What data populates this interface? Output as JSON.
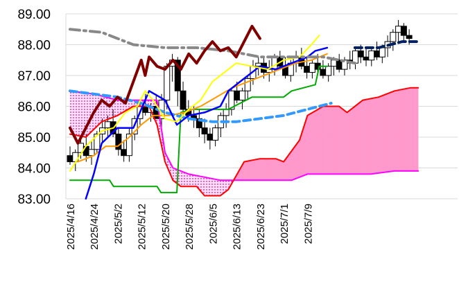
{
  "chart_data": {
    "type": "line",
    "title": "",
    "xlabel": "",
    "ylabel": "",
    "ylim": [
      83.0,
      89.0
    ],
    "grid": true,
    "legend": "none",
    "y_ticks": [
      "83.00",
      "84.00",
      "85.00",
      "86.00",
      "87.00",
      "88.00",
      "89.00"
    ],
    "y_tick_values": [
      83,
      84,
      85,
      86,
      87,
      88,
      89
    ],
    "x_ticks": [
      "2025/4/16",
      "2025/4/24",
      "2025/5/2",
      "2025/5/12",
      "2025/5/20",
      "2025/5/28",
      "2025/6/5",
      "2025/6/13",
      "2025/6/23",
      "2025/7/1",
      "2025/7/9"
    ],
    "x_tick_index": [
      0,
      6,
      12,
      18,
      24,
      30,
      36,
      42,
      48,
      54,
      60
    ],
    "n_slots": 73,
    "candles": [
      [
        84.4,
        84.7,
        84.1,
        84.2
      ],
      [
        84.2,
        84.6,
        83.9,
        84.5
      ],
      [
        84.5,
        85.0,
        84.3,
        84.8
      ],
      [
        84.7,
        85.1,
        84.2,
        84.4
      ],
      [
        84.4,
        84.9,
        84.1,
        84.6
      ],
      [
        84.6,
        85.2,
        84.5,
        85.1
      ],
      [
        85.1,
        85.6,
        84.8,
        85.3
      ],
      [
        85.3,
        85.7,
        85.0,
        85.5
      ],
      [
        85.5,
        85.9,
        85.0,
        85.1
      ],
      [
        85.1,
        85.3,
        84.4,
        84.6
      ],
      [
        84.6,
        84.9,
        84.2,
        84.4
      ],
      [
        84.4,
        85.3,
        84.2,
        85.1
      ],
      [
        85.1,
        85.7,
        84.9,
        85.6
      ],
      [
        85.6,
        86.2,
        85.4,
        86.0
      ],
      [
        86.0,
        86.4,
        85.7,
        85.8
      ],
      [
        85.8,
        86.1,
        85.5,
        86.0
      ],
      [
        86.0,
        86.4,
        85.6,
        85.6
      ],
      [
        85.6,
        86.4,
        85.3,
        86.2
      ],
      [
        86.2,
        87.4,
        85.9,
        87.3
      ],
      [
        87.3,
        87.7,
        86.8,
        87.5
      ],
      [
        87.5,
        87.6,
        86.0,
        86.5
      ],
      [
        86.5,
        86.8,
        85.7,
        85.9
      ],
      [
        85.9,
        86.2,
        85.5,
        85.7
      ],
      [
        85.7,
        86.0,
        85.3,
        85.6
      ],
      [
        85.6,
        85.9,
        85.0,
        85.3
      ],
      [
        85.3,
        85.6,
        84.8,
        85.1
      ],
      [
        85.1,
        85.3,
        84.6,
        84.9
      ],
      [
        84.9,
        85.4,
        84.7,
        85.3
      ],
      [
        85.3,
        85.8,
        85.0,
        85.7
      ],
      [
        85.7,
        86.1,
        85.3,
        85.9
      ],
      [
        85.9,
        86.6,
        85.7,
        86.5
      ],
      [
        86.5,
        86.8,
        86.1,
        86.2
      ],
      [
        86.2,
        86.6,
        85.9,
        86.5
      ],
      [
        86.5,
        87.0,
        86.2,
        86.9
      ],
      [
        86.9,
        87.5,
        86.7,
        87.3
      ],
      [
        87.3,
        87.6,
        87.0,
        87.4
      ],
      [
        87.4,
        87.6,
        86.9,
        87.1
      ],
      [
        87.1,
        87.5,
        86.8,
        87.2
      ],
      [
        87.2,
        87.7,
        87.0,
        87.6
      ],
      [
        87.6,
        87.8,
        87.2,
        87.3
      ],
      [
        87.3,
        87.6,
        86.9,
        87.0
      ],
      [
        87.0,
        87.5,
        86.8,
        87.4
      ],
      [
        87.4,
        87.8,
        87.1,
        87.6
      ],
      [
        87.6,
        87.9,
        87.2,
        87.3
      ],
      [
        87.3,
        87.6,
        86.9,
        87.1
      ],
      [
        87.1,
        87.5,
        86.9,
        87.4
      ],
      [
        87.4,
        87.7,
        87.0,
        87.2
      ],
      [
        87.2,
        87.5,
        86.9,
        87.0
      ],
      [
        87.0,
        87.4,
        86.8,
        87.3
      ],
      [
        87.3,
        87.6,
        87.0,
        87.5
      ],
      [
        87.5,
        87.7,
        87.1,
        87.2
      ],
      [
        87.2,
        87.6,
        87.0,
        87.5
      ],
      [
        87.5,
        87.8,
        87.2,
        87.4
      ],
      [
        87.4,
        87.9,
        87.2,
        87.8
      ],
      [
        87.8,
        88.0,
        87.4,
        87.6
      ],
      [
        87.6,
        87.9,
        87.3,
        87.5
      ],
      [
        87.5,
        87.9,
        87.3,
        87.8
      ],
      [
        87.8,
        88.1,
        87.5,
        87.6
      ],
      [
        87.6,
        88.0,
        87.4,
        87.9
      ],
      [
        87.9,
        88.3,
        87.6,
        88.1
      ],
      [
        88.1,
        88.5,
        87.8,
        88.4
      ],
      [
        88.4,
        88.8,
        88.1,
        88.6
      ],
      [
        88.6,
        88.7,
        88.1,
        88.3
      ],
      [
        88.3,
        88.5,
        88.0,
        88.2
      ]
    ],
    "series": [
      {
        "key": "kijun",
        "color": "#00aa00",
        "values": [
          [
            0,
            83.6
          ],
          [
            10,
            83.6
          ],
          [
            11,
            83.4
          ],
          [
            22,
            83.4
          ],
          [
            23,
            83.2
          ],
          [
            27,
            83.2
          ],
          [
            28,
            85.8
          ],
          [
            31,
            85.9
          ],
          [
            40,
            85.9
          ],
          [
            46,
            86.3
          ],
          [
            54,
            86.3
          ],
          [
            56,
            86.5
          ],
          [
            62,
            86.7
          ],
          [
            63,
            87.3
          ],
          [
            65,
            87.3
          ]
        ]
      },
      {
        "key": "tenkan",
        "color": "#0000ff",
        "values": [
          [
            4,
            83.0
          ],
          [
            6,
            83.8
          ],
          [
            8,
            84.8
          ],
          [
            12,
            85.3
          ],
          [
            16,
            85.3
          ],
          [
            18,
            85.9
          ],
          [
            20,
            86.5
          ],
          [
            24,
            86.2
          ],
          [
            27,
            85.4
          ],
          [
            30,
            85.7
          ],
          [
            34,
            85.8
          ],
          [
            38,
            86.0
          ],
          [
            40,
            86.5
          ],
          [
            44,
            86.9
          ],
          [
            48,
            87.3
          ],
          [
            52,
            87.2
          ],
          [
            56,
            87.4
          ],
          [
            60,
            87.6
          ],
          [
            62,
            87.8
          ],
          [
            65,
            87.9
          ]
        ]
      },
      {
        "key": "ma_short",
        "color": "#ffff00",
        "values": [
          [
            0,
            83.9
          ],
          [
            4,
            84.7
          ],
          [
            8,
            85.2
          ],
          [
            11,
            85.3
          ],
          [
            14,
            85.8
          ],
          [
            17,
            86.0
          ],
          [
            19,
            86.5
          ],
          [
            21,
            86.2
          ],
          [
            24,
            85.6
          ],
          [
            27,
            85.5
          ],
          [
            30,
            85.9
          ],
          [
            33,
            86.2
          ],
          [
            36,
            86.8
          ],
          [
            39,
            87.1
          ],
          [
            42,
            87.4
          ],
          [
            46,
            87.3
          ],
          [
            50,
            87.2
          ],
          [
            54,
            87.5
          ],
          [
            58,
            87.6
          ],
          [
            61,
            88.0
          ],
          [
            63,
            88.3
          ]
        ]
      },
      {
        "key": "ma_mid",
        "color": "#ff9900",
        "values": [
          [
            2,
            84.2
          ],
          [
            6,
            84.4
          ],
          [
            9,
            84.7
          ],
          [
            12,
            84.7
          ],
          [
            15,
            85.0
          ],
          [
            18,
            85.4
          ],
          [
            21,
            85.7
          ],
          [
            25,
            85.7
          ],
          [
            29,
            85.8
          ],
          [
            33,
            86.0
          ],
          [
            37,
            86.3
          ],
          [
            41,
            86.6
          ],
          [
            45,
            86.8
          ],
          [
            49,
            87.0
          ],
          [
            53,
            87.2
          ],
          [
            57,
            87.4
          ],
          [
            61,
            87.5
          ],
          [
            65,
            87.7
          ]
        ]
      },
      {
        "key": "ma_long",
        "color": "#3399ff",
        "dash": true,
        "values": [
          [
            0,
            86.5
          ],
          [
            6,
            86.4
          ],
          [
            12,
            86.3
          ],
          [
            18,
            86.1
          ],
          [
            24,
            85.8
          ],
          [
            30,
            85.6
          ],
          [
            36,
            85.5
          ],
          [
            42,
            85.5
          ],
          [
            48,
            85.6
          ],
          [
            54,
            85.7
          ],
          [
            60,
            85.9
          ],
          [
            66,
            86.1
          ]
        ]
      },
      {
        "key": "chikou",
        "color": "#800000",
        "values": [
          [
            0,
            85.3
          ],
          [
            2,
            84.8
          ],
          [
            4,
            85.3
          ],
          [
            6,
            85.8
          ],
          [
            8,
            86.2
          ],
          [
            10,
            86.0
          ],
          [
            12,
            86.3
          ],
          [
            14,
            86.1
          ],
          [
            16,
            86.8
          ],
          [
            18,
            87.5
          ],
          [
            19,
            87.0
          ],
          [
            20,
            87.6
          ],
          [
            22,
            87.3
          ],
          [
            24,
            87.2
          ],
          [
            26,
            87.5
          ],
          [
            28,
            87.2
          ],
          [
            30,
            87.7
          ],
          [
            32,
            87.4
          ],
          [
            34,
            87.8
          ],
          [
            36,
            88.1
          ],
          [
            38,
            87.8
          ],
          [
            40,
            87.9
          ],
          [
            42,
            87.6
          ],
          [
            44,
            88.1
          ],
          [
            46,
            88.6
          ],
          [
            48,
            88.2
          ]
        ]
      },
      {
        "key": "span_a",
        "color": "#ff0000",
        "values": [
          [
            0,
            85.1
          ],
          [
            4,
            85.0
          ],
          [
            8,
            85.5
          ],
          [
            12,
            85.7
          ],
          [
            16,
            86.0
          ],
          [
            20,
            86.0
          ],
          [
            22,
            85.4
          ],
          [
            24,
            84.2
          ],
          [
            26,
            83.6
          ],
          [
            28,
            83.4
          ],
          [
            32,
            83.4
          ],
          [
            34,
            83.1
          ],
          [
            38,
            83.1
          ],
          [
            40,
            83.3
          ],
          [
            44,
            84.2
          ],
          [
            48,
            84.3
          ],
          [
            52,
            84.3
          ],
          [
            54,
            84.2
          ],
          [
            58,
            84.9
          ],
          [
            60,
            85.7
          ],
          [
            64,
            86.0
          ],
          [
            68,
            86.0
          ],
          [
            70,
            85.8
          ],
          [
            74,
            86.2
          ],
          [
            78,
            86.3
          ],
          [
            82,
            86.5
          ],
          [
            86,
            86.6
          ],
          [
            88,
            86.6
          ]
        ]
      },
      {
        "key": "span_b",
        "color": "#ff00ff",
        "values": [
          [
            0,
            86.5
          ],
          [
            6,
            86.4
          ],
          [
            12,
            86.2
          ],
          [
            18,
            86.2
          ],
          [
            22,
            86.2
          ],
          [
            24,
            84.5
          ],
          [
            26,
            84.0
          ],
          [
            30,
            83.8
          ],
          [
            34,
            83.7
          ],
          [
            38,
            83.6
          ],
          [
            44,
            83.6
          ],
          [
            48,
            83.6
          ],
          [
            52,
            83.6
          ],
          [
            56,
            83.6
          ],
          [
            60,
            83.8
          ],
          [
            64,
            83.8
          ],
          [
            70,
            83.8
          ],
          [
            76,
            83.8
          ],
          [
            82,
            83.9
          ],
          [
            88,
            83.9
          ]
        ]
      },
      {
        "key": "trend",
        "color": "#888888",
        "values": [
          [
            0,
            88.5
          ],
          [
            8,
            88.4
          ],
          [
            16,
            88.0
          ],
          [
            24,
            87.9
          ],
          [
            32,
            87.9
          ],
          [
            40,
            87.8
          ],
          [
            48,
            87.6
          ],
          [
            56,
            87.6
          ],
          [
            64,
            87.6
          ],
          [
            72,
            87.4
          ]
        ]
      },
      {
        "key": "trend_ext",
        "color": "#002060",
        "values": [
          [
            72,
            87.9
          ],
          [
            78,
            87.9
          ],
          [
            84,
            88.1
          ],
          [
            88,
            88.1
          ]
        ]
      }
    ]
  }
}
